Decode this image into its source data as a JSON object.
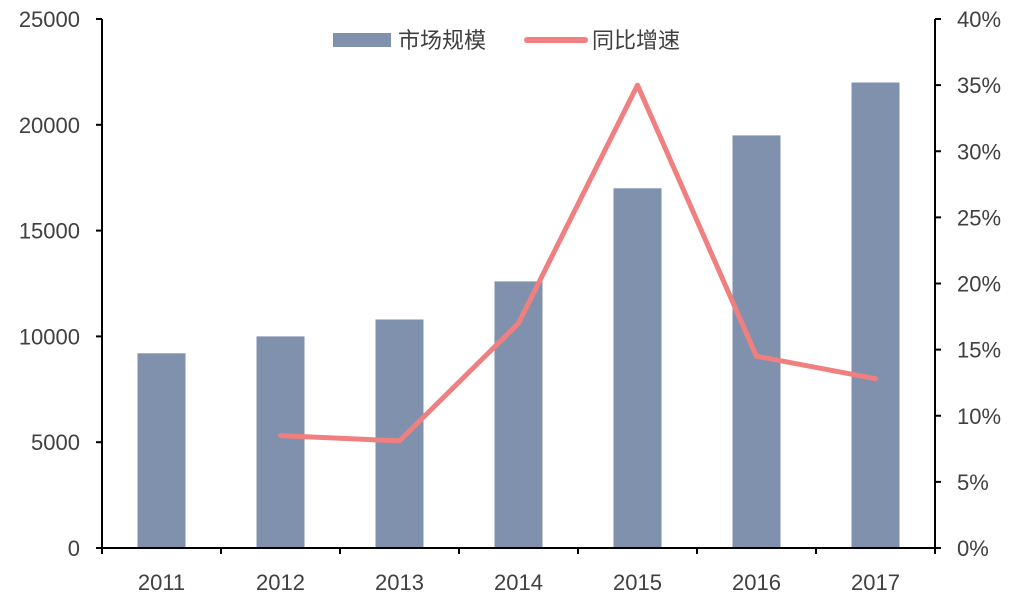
{
  "chart_data": {
    "type": "bar",
    "categories": [
      "2011",
      "2012",
      "2013",
      "2014",
      "2015",
      "2016",
      "2017"
    ],
    "series": [
      {
        "name": "市场规模",
        "type": "bar",
        "axis": "left",
        "color": "#8091ae",
        "values": [
          9200,
          10000,
          10800,
          12600,
          17000,
          19500,
          22000
        ]
      },
      {
        "name": "同比增速",
        "type": "line",
        "axis": "right",
        "color": "#f07f80",
        "values": [
          null,
          8.5,
          8.1,
          17.0,
          35.0,
          14.5,
          12.8
        ]
      }
    ],
    "y_left": {
      "ylim": [
        0,
        25000
      ],
      "ticks": [
        "0",
        "5000",
        "10000",
        "15000",
        "20000",
        "25000"
      ]
    },
    "y_right": {
      "ylim": [
        0,
        40
      ],
      "unit": "%",
      "ticks": [
        "0%",
        "5%",
        "10%",
        "15%",
        "20%",
        "25%",
        "30%",
        "35%",
        "40%"
      ]
    },
    "legend_position": "top-center",
    "grid": false
  }
}
